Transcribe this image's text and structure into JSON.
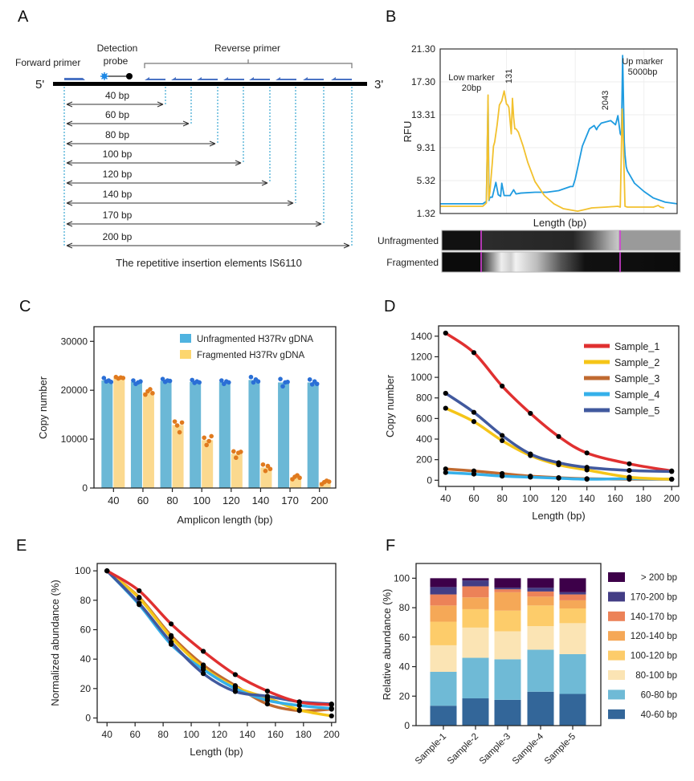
{
  "panels": {
    "A": {
      "letter": "A"
    },
    "B": {
      "letter": "B"
    },
    "C": {
      "letter": "C"
    },
    "D": {
      "letter": "D"
    },
    "E": {
      "letter": "E"
    },
    "F": {
      "letter": "F"
    }
  },
  "diagram_a": {
    "end5_label": "5'",
    "end3_label": "3'",
    "forward_primer_label": "Forward primer",
    "probe_label_line1": "Detection",
    "probe_label_line2": "probe",
    "reverse_primer_label": "Reverse primer",
    "amplicons": [
      "40 bp",
      "60 bp",
      "80 bp",
      "100 bp",
      "120 bp",
      "140 bp",
      "170 bp",
      "200 bp"
    ],
    "caption": "The repetitive insertion elements IS6110",
    "colors": {
      "primer": "#4a73c4",
      "guide": "#56b4d9",
      "probe": "#1e88e5"
    }
  },
  "chart_data": [
    {
      "id": "B",
      "type": "line",
      "title": "",
      "xlabel": "Length (bp)",
      "ylabel": "RFU",
      "y_ticks": [
        "1.32",
        "5.32",
        "9.31",
        "13.31",
        "17.30",
        "21.30"
      ],
      "ylim": [
        1.32,
        21.3
      ],
      "xlim": [
        0,
        100
      ],
      "grid": true,
      "annotations": [
        {
          "text_line1": "Low marker",
          "text_line2": "20bp"
        },
        {
          "text": "131"
        },
        {
          "text": "2043"
        },
        {
          "text_line1": "Up marker",
          "text_line2": "5000bp"
        }
      ],
      "series": [
        {
          "name": "Unfragmented",
          "color": "#1e9be0",
          "x": [
            0,
            18,
            19.5,
            20.2,
            20.6,
            21,
            22,
            23.5,
            24.5,
            25.5,
            26,
            27,
            28,
            29.5,
            31,
            32,
            34,
            40,
            45,
            50,
            55,
            56,
            57,
            60,
            63,
            65,
            66,
            66.5,
            68,
            72,
            74,
            75,
            76,
            76.5,
            77,
            77.7,
            78,
            78.5,
            79,
            80,
            82,
            86,
            90,
            95,
            100
          ],
          "y": [
            2.5,
            2.5,
            2.8,
            15.0,
            2.9,
            3.3,
            3.3,
            5.1,
            3.6,
            3.4,
            5.0,
            3.5,
            3.5,
            3.5,
            4.2,
            3.7,
            3.8,
            3.9,
            3.9,
            4.1,
            4.6,
            4.6,
            5.5,
            9.5,
            11.6,
            12.0,
            11.5,
            11.8,
            12.3,
            12.6,
            12.1,
            13.2,
            11.0,
            10.8,
            20.5,
            10.0,
            8.5,
            7.0,
            6.5,
            6.0,
            5.0,
            4.0,
            3.2,
            2.7,
            2.5
          ]
        },
        {
          "name": "Fragmented",
          "color": "#f2c12e",
          "x": [
            0,
            18,
            19.5,
            20.2,
            20.5,
            21,
            22,
            22.5,
            23,
            24,
            25,
            26,
            27,
            28,
            28.5,
            29,
            30,
            30.5,
            31,
            31.5,
            32,
            33,
            35,
            37,
            40,
            44,
            48,
            52,
            58,
            61,
            64,
            70,
            75,
            76,
            76.8,
            77.3,
            78,
            79,
            85,
            90,
            92,
            93,
            94.5
          ],
          "y": [
            2.2,
            2.2,
            2.6,
            15.7,
            3.0,
            4.0,
            7.5,
            9.5,
            10.0,
            12.0,
            14.5,
            15.0,
            16.2,
            14.6,
            14.5,
            14.2,
            11.0,
            15.3,
            13.0,
            11.6,
            11.6,
            11.2,
            9.5,
            7.5,
            5.2,
            3.5,
            2.5,
            1.9,
            1.6,
            1.8,
            2.0,
            2.1,
            2.2,
            2.1,
            14.0,
            10.0,
            2.2,
            2.1,
            2.1,
            2.1,
            2.3,
            2.1,
            2.0
          ]
        }
      ],
      "gel": {
        "lanes": [
          {
            "label": "Unfragmented",
            "label_color": "#3aa0dc"
          },
          {
            "label": "Fragmented",
            "label_color": "#f5b350"
          }
        ],
        "marker_color": "#d63fd6"
      }
    },
    {
      "id": "C",
      "type": "bar",
      "xlabel": "Amplicon length (bp)",
      "ylabel": "Copy number",
      "ylim": [
        0,
        33000
      ],
      "y_ticks": [
        0,
        10000,
        20000,
        30000
      ],
      "categories": [
        "40",
        "60",
        "80",
        "100",
        "120",
        "140",
        "170",
        "200"
      ],
      "legend_position": "top-right",
      "series": [
        {
          "name": "Unfragmented H37Rv gDNA",
          "bar_color": "#6bb8d6",
          "dot_color": "#2a6fd6",
          "values": [
            22000,
            21700,
            21900,
            21700,
            21700,
            22100,
            21600,
            21600
          ],
          "points": [
            [
              22500,
              21800,
              22000,
              21700
            ],
            [
              22000,
              21300,
              21600,
              21800
            ],
            [
              22300,
              21700,
              22000,
              21900
            ],
            [
              22100,
              21500,
              21800,
              21600
            ],
            [
              22000,
              21300,
              21800,
              21600
            ],
            [
              22700,
              21600,
              22200,
              21800
            ],
            [
              22300,
              20800,
              21600,
              21700
            ],
            [
              22200,
              21200,
              21800,
              21300
            ]
          ]
        },
        {
          "name": "Fragmented H37Rv gDNA",
          "bar_color": "#fbd98f",
          "dot_color": "#e07a1e",
          "values": [
            22500,
            19600,
            12900,
            9800,
            7000,
            4200,
            2200,
            1200
          ],
          "points": [
            [
              22700,
              22400,
              22600,
              22500
            ],
            [
              19100,
              19800,
              20200,
              19400
            ],
            [
              13600,
              12800,
              11400,
              13400
            ],
            [
              10300,
              8800,
              9600,
              10600
            ],
            [
              7500,
              6200,
              7200,
              7400
            ],
            [
              4800,
              3500,
              4500,
              3900
            ],
            [
              1800,
              2300,
              2600,
              2100
            ],
            [
              800,
              1200,
              1500,
              1300
            ]
          ]
        }
      ]
    },
    {
      "id": "D",
      "type": "line",
      "xlabel": "Length (bp)",
      "ylabel": "Copy number",
      "xlim": [
        35,
        205
      ],
      "ylim": [
        -60,
        1500
      ],
      "x_ticks": [
        40,
        60,
        80,
        100,
        120,
        140,
        160,
        180,
        200
      ],
      "y_ticks": [
        0,
        200,
        400,
        600,
        800,
        1000,
        1200,
        1400
      ],
      "legend_position": "top-right",
      "x": [
        40,
        60,
        80,
        100,
        120,
        140,
        170,
        200
      ],
      "series": [
        {
          "name": "Sample_1",
          "color": "#e03030",
          "values": [
            1430,
            1240,
            915,
            650,
            425,
            265,
            160,
            90
          ]
        },
        {
          "name": "Sample_2",
          "color": "#f5c518",
          "values": [
            700,
            570,
            385,
            240,
            150,
            100,
            30,
            10
          ]
        },
        {
          "name": "Sample_3",
          "color": "#c06a30",
          "values": [
            110,
            90,
            65,
            40,
            25,
            15,
            10,
            10
          ]
        },
        {
          "name": "Sample_4",
          "color": "#35b0ea",
          "values": [
            75,
            60,
            40,
            30,
            20,
            10,
            15,
            10
          ]
        },
        {
          "name": "Sample_5",
          "color": "#41599e",
          "values": [
            845,
            660,
            435,
            255,
            170,
            125,
            95,
            85
          ]
        }
      ]
    },
    {
      "id": "E",
      "type": "line",
      "xlabel": "Length (bp)",
      "ylabel": "Normalized abundance (%)",
      "xlim": [
        33,
        203
      ],
      "ylim": [
        -3,
        105
      ],
      "x_ticks": [
        40,
        60,
        80,
        100,
        120,
        140,
        160,
        180,
        200
      ],
      "y_ticks": [
        0,
        20,
        40,
        60,
        80,
        100
      ],
      "x": [
        40,
        62.9,
        85.7,
        108.6,
        131.4,
        154.3,
        177.1,
        200
      ],
      "series": [
        {
          "name": "Sample_1",
          "color": "#e03030",
          "values": [
            100,
            86.5,
            63.9,
            45.3,
            29.5,
            18.3,
            10.8,
            9.0
          ]
        },
        {
          "name": "Sample_2",
          "color": "#f5c518",
          "values": [
            100,
            81.5,
            54.8,
            34.3,
            21.0,
            13.6,
            5.5,
            1.4
          ]
        },
        {
          "name": "Sample_3",
          "color": "#c06a30",
          "values": [
            100,
            82.0,
            56.0,
            36.0,
            22.0,
            9.5,
            5.0,
            6.0
          ]
        },
        {
          "name": "Sample_4",
          "color": "#35b0ea",
          "values": [
            100,
            77.0,
            50.0,
            33.0,
            20.0,
            12.0,
            8.5,
            6.5
          ]
        },
        {
          "name": "Sample_5",
          "color": "#41599e",
          "values": [
            100,
            78.0,
            51.5,
            30.2,
            18.0,
            14.8,
            11.0,
            9.5
          ]
        }
      ]
    },
    {
      "id": "F",
      "type": "bar",
      "stacked": true,
      "xlabel": "",
      "ylabel": "Relative abundance (%)",
      "ylim": [
        0,
        110
      ],
      "y_ticks": [
        0,
        20,
        40,
        60,
        80,
        100
      ],
      "categories": [
        "Sample-1",
        "Sample-2",
        "Sample-3",
        "Sample-4",
        "Sample-5"
      ],
      "legend_position": "right",
      "series": [
        {
          "name": "40-60 bp",
          "color": "#336699",
          "values": [
            13.5,
            18.5,
            17.5,
            23.0,
            21.5
          ]
        },
        {
          "name": "60-80 bp",
          "color": "#6fbad6",
          "values": [
            23.0,
            27.5,
            27.5,
            28.5,
            27.0
          ]
        },
        {
          "name": "80-100 bp",
          "color": "#fbe4b4",
          "values": [
            18.0,
            20.5,
            19.0,
            16.0,
            21.0
          ]
        },
        {
          "name": "100-120 bp",
          "color": "#fdcc6a",
          "values": [
            16.0,
            12.5,
            14.0,
            14.0,
            10.0
          ]
        },
        {
          "name": "120-140 bp",
          "color": "#f5a857",
          "values": [
            11.0,
            8.0,
            12.5,
            6.0,
            5.5
          ]
        },
        {
          "name": "140-170 bp",
          "color": "#ec8258",
          "values": [
            7.5,
            7.5,
            2.0,
            3.5,
            4.0
          ]
        },
        {
          "name": "170-200 bp",
          "color": "#433d85",
          "values": [
            5.0,
            4.0,
            1.0,
            2.5,
            1.5
          ]
        },
        {
          "name": "> 200 bp",
          "color": "#3d0049",
          "values": [
            6.0,
            1.5,
            6.5,
            6.5,
            9.5
          ]
        }
      ]
    }
  ]
}
